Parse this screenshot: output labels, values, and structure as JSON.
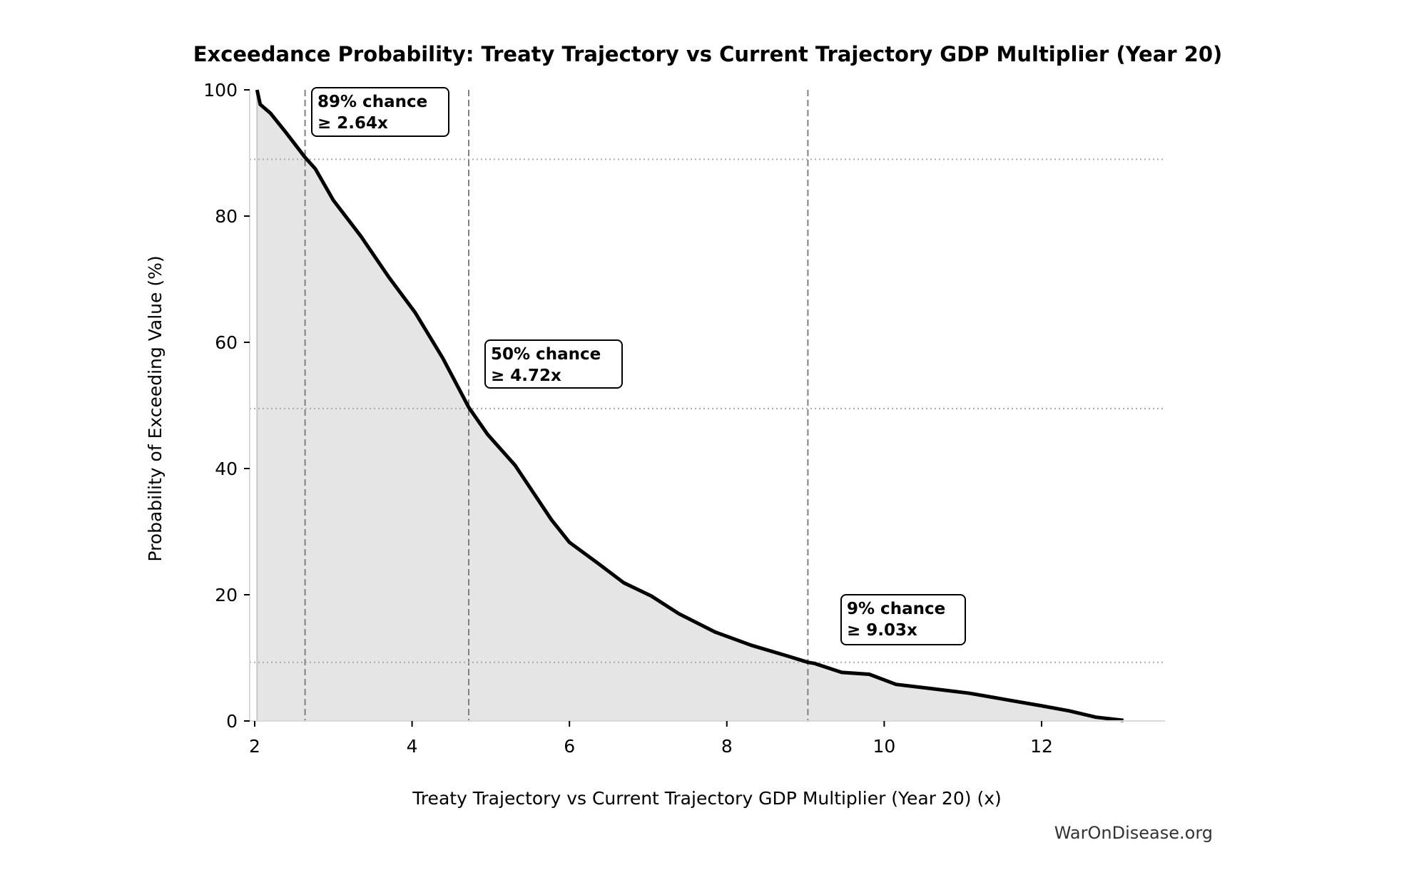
{
  "chart_data": {
    "type": "area",
    "title": "Exceedance Probability: Treaty Trajectory vs Current Trajectory GDP Multiplier (Year 20)",
    "xlabel": "Treaty Trajectory vs Current Trajectory GDP Multiplier (Year 20) (x)",
    "ylabel": "Probability of Exceeding Value (%)",
    "xlim": [
      1.95,
      13.55
    ],
    "ylim": [
      0,
      100
    ],
    "xticks": [
      2,
      4,
      6,
      8,
      10,
      12
    ],
    "yticks": [
      0,
      20,
      40,
      60,
      80,
      100
    ],
    "grid": false,
    "colors": {
      "line": "#000000",
      "fill": "#e5e5e5",
      "reference": "#808080",
      "hline": "#aaaaaa"
    },
    "series": [
      {
        "x": [
          2.03,
          2.07,
          2.2,
          2.4,
          2.64,
          2.77,
          3.0,
          3.35,
          3.7,
          4.04,
          4.39,
          4.72,
          4.96,
          5.31,
          5.54,
          5.77,
          6.0,
          6.35,
          6.69,
          7.04,
          7.39,
          7.85,
          8.31,
          8.77,
          9.03,
          9.12,
          9.46,
          9.81,
          10.15,
          10.62,
          11.08,
          11.54,
          12.0,
          12.35,
          12.69,
          13.04
        ],
        "y": [
          100,
          97.7,
          96.3,
          93.2,
          89.3,
          87.5,
          82.5,
          76.8,
          70.4,
          64.7,
          57.5,
          49.7,
          45.4,
          40.5,
          36.2,
          31.9,
          28.3,
          25.1,
          21.9,
          19.8,
          17.0,
          14.1,
          12.0,
          10.3,
          9.3,
          9.1,
          7.7,
          7.4,
          5.8,
          5.1,
          4.4,
          3.4,
          2.4,
          1.6,
          0.6,
          0.1
        ]
      }
    ],
    "reference_lines": [
      {
        "x": 2.64,
        "y": 89,
        "label_line1": "89% chance",
        "label_line2": "≥ 2.64x"
      },
      {
        "x": 4.72,
        "y": 49.5,
        "label_line1": "50% chance",
        "label_line2": "≥ 4.72x"
      },
      {
        "x": 9.03,
        "y": 9.3,
        "label_line1": "9% chance",
        "label_line2": "≥ 9.03x"
      }
    ]
  },
  "watermark": "WarOnDisease.org"
}
